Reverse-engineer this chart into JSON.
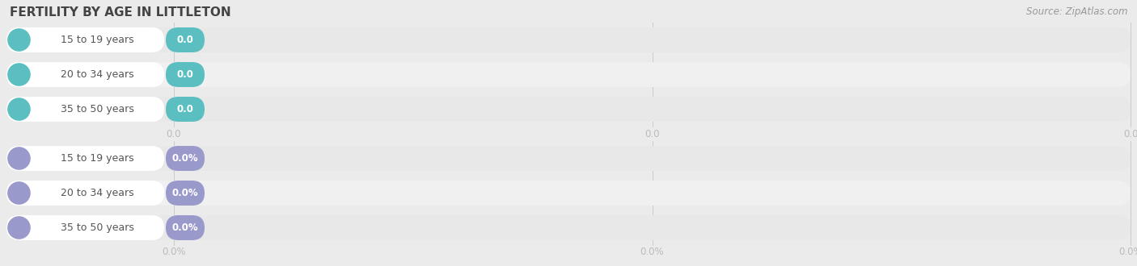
{
  "title": "FERTILITY BY AGE IN LITTLETON",
  "source": "Source: ZipAtlas.com",
  "background_color": "#ebebeb",
  "top_section": {
    "categories": [
      "15 to 19 years",
      "20 to 34 years",
      "35 to 50 years"
    ],
    "values": [
      0.0,
      0.0,
      0.0
    ],
    "bar_color": "#5bbfc2",
    "tick_label": "0.0"
  },
  "bottom_section": {
    "categories": [
      "15 to 19 years",
      "20 to 34 years",
      "35 to 50 years"
    ],
    "values": [
      0.0,
      0.0,
      0.0
    ],
    "bar_color": "#9999cc",
    "tick_label": "0.0%"
  },
  "row_bg_odd": "#e8e8e8",
  "row_bg_even": "#f0f0f0",
  "row_pill_color": "#ffffff",
  "tick_color": "#bbbbbb",
  "title_color": "#444444",
  "source_color": "#999999",
  "label_color": "#555555",
  "value_text_color": "#ffffff",
  "title_fontsize": 11,
  "source_fontsize": 8.5,
  "label_fontsize": 9,
  "value_fontsize": 8.5,
  "tick_fontsize": 8.5
}
